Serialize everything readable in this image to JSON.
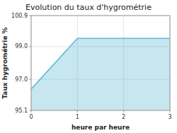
{
  "chart_data": {
    "type": "area",
    "title": "Evolution du taux d'hygrométrie",
    "xlabel": "heure par heure",
    "ylabel": "Taux hygrométrie %",
    "x": [
      0,
      1,
      3
    ],
    "values": [
      96.4,
      99.5,
      99.5
    ],
    "color": "#5bb8d4",
    "xlim": [
      0,
      3
    ],
    "ylim": [
      95.1,
      100.9
    ],
    "xticks": [
      0,
      1,
      2,
      3
    ],
    "yticks": [
      95.1,
      {
        "value": 97.0,
        "label": "97.0"
      },
      {
        "value": 99.0,
        "label": "99.0"
      },
      100.9
    ],
    "grid": true
  }
}
